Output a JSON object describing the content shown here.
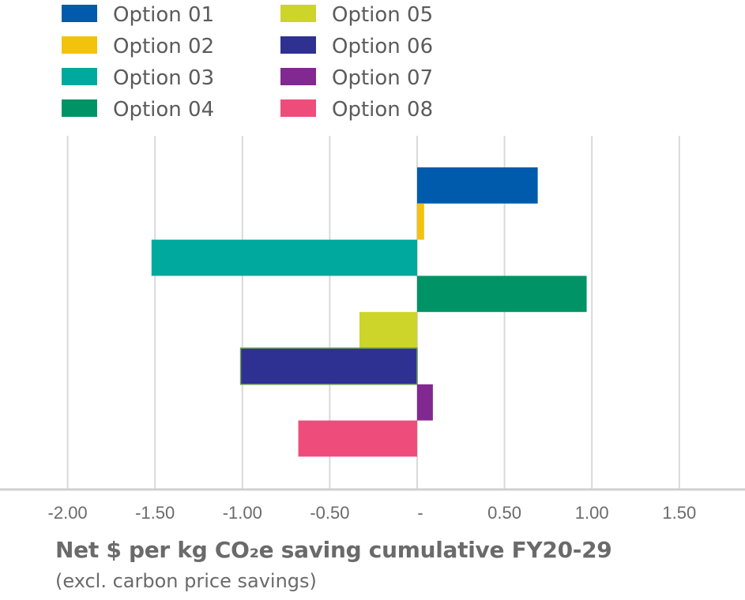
{
  "chart_data": {
    "type": "bar",
    "orientation": "horizontal",
    "title": "",
    "xlabel": "Net $ per kg CO₂e saving cumulative FY20-29",
    "xlabel_sub": "(excl. carbon price savings)",
    "ylabel": "",
    "xlim": [
      -2.0,
      1.75
    ],
    "x_ticks": [
      -2.0,
      -1.5,
      -1.0,
      -0.5,
      0,
      0.5,
      1.0,
      1.5
    ],
    "x_tick_labels": [
      "-2.00",
      "-1.50",
      "-1.00",
      "-0.50",
      "-",
      "0.50",
      "1.00",
      "1.50"
    ],
    "grid": true,
    "legend_position": "top-left",
    "series": [
      {
        "name": "Option 01",
        "value": 0.69,
        "color": "#005bac"
      },
      {
        "name": "Option 02",
        "value": 0.04,
        "color": "#f3c20d"
      },
      {
        "name": "Option 03",
        "value": -1.52,
        "color": "#00a99d"
      },
      {
        "name": "Option 04",
        "value": 0.97,
        "color": "#009366"
      },
      {
        "name": "Option 05",
        "value": -0.33,
        "color": "#cdd42a"
      },
      {
        "name": "Option 06",
        "value": -1.01,
        "color": "#2e3192"
      },
      {
        "name": "Option 07",
        "value": 0.09,
        "color": "#812990"
      },
      {
        "name": "Option 08",
        "value": -0.68,
        "color": "#ee4d7c"
      }
    ]
  }
}
